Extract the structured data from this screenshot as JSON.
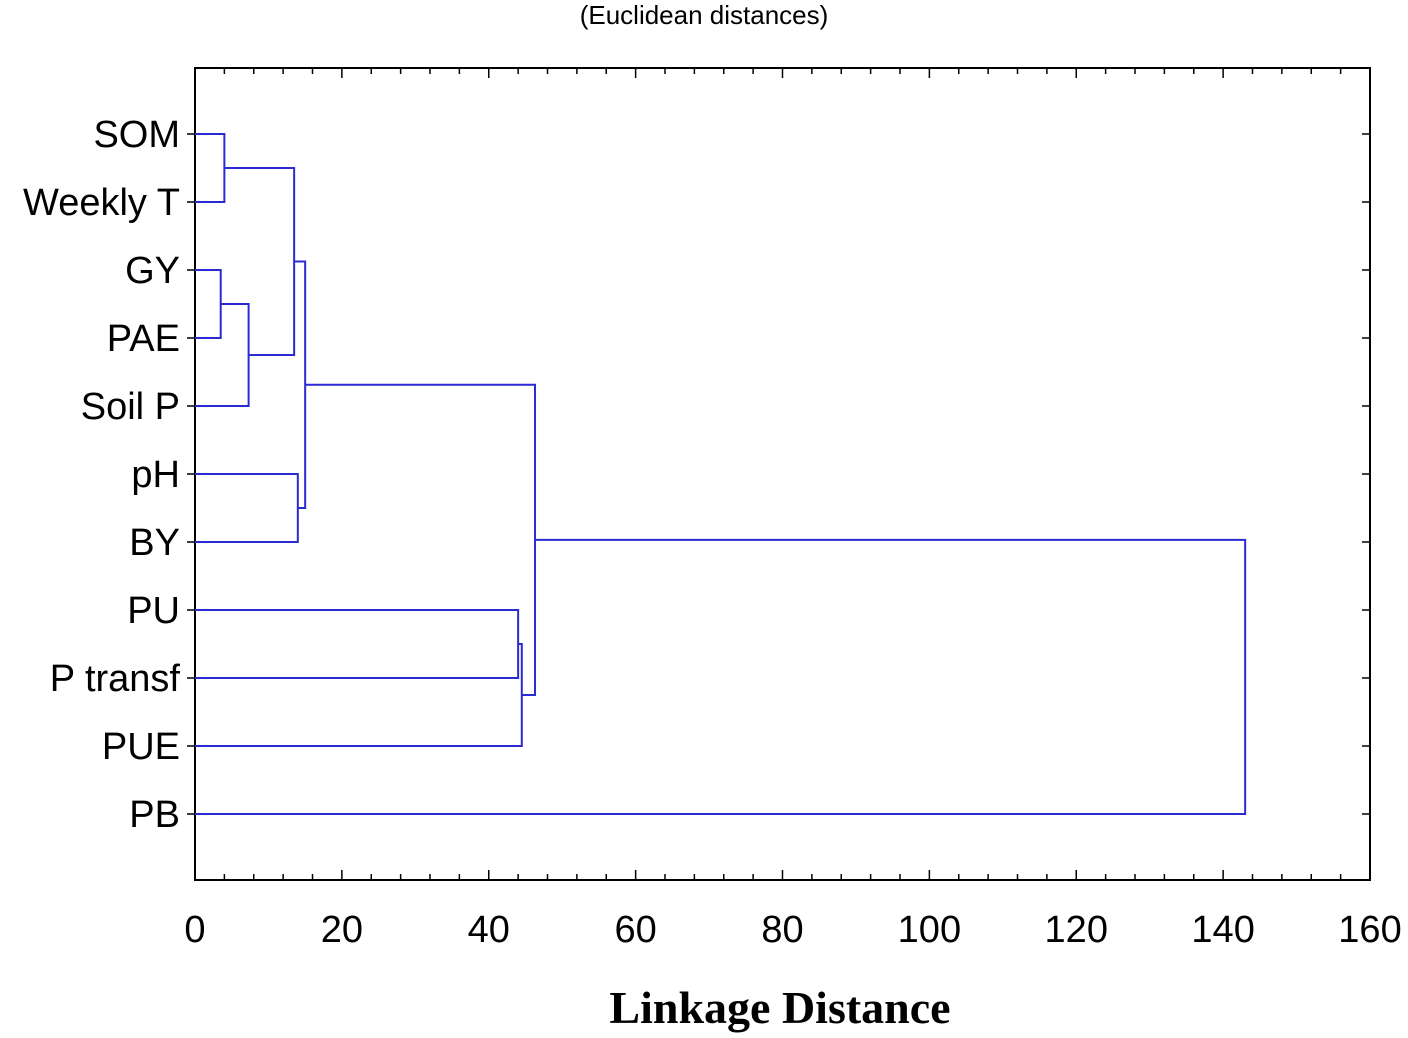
{
  "chart_data": {
    "type": "dendrogram",
    "subtitle": "(Euclidean distances)",
    "xlabel": "Linkage Distance",
    "xlim": [
      0,
      160
    ],
    "x_ticks": [
      "0",
      "20",
      "40",
      "60",
      "80",
      "100",
      "120",
      "140",
      "160"
    ],
    "x_tick_values": [
      0,
      20,
      40,
      60,
      80,
      100,
      120,
      140,
      160
    ],
    "grid": false,
    "line_color": "#2b2bd4",
    "leaves": [
      "SOM",
      "Weekly T",
      "GY",
      "PAE",
      "Soil P",
      "pH",
      "BY",
      "PU",
      "P transf",
      "PUE",
      "PB"
    ],
    "merges": [
      {
        "a": "L2",
        "b": "L3",
        "height": 3.5
      },
      {
        "a": "L0",
        "b": "L1",
        "height": 4.0
      },
      {
        "a": "M0",
        "b": "L4",
        "height": 7.3
      },
      {
        "a": "M1",
        "b": "M2",
        "height": 13.5
      },
      {
        "a": "L5",
        "b": "L6",
        "height": 14.0
      },
      {
        "a": "M3",
        "b": "M4",
        "height": 15.0
      },
      {
        "a": "L7",
        "b": "L8",
        "height": 44.0
      },
      {
        "a": "M6",
        "b": "L9",
        "height": 44.5
      },
      {
        "a": "M5",
        "b": "M7",
        "height": 46.3
      },
      {
        "a": "M8",
        "b": "L10",
        "height": 143.0
      }
    ]
  }
}
